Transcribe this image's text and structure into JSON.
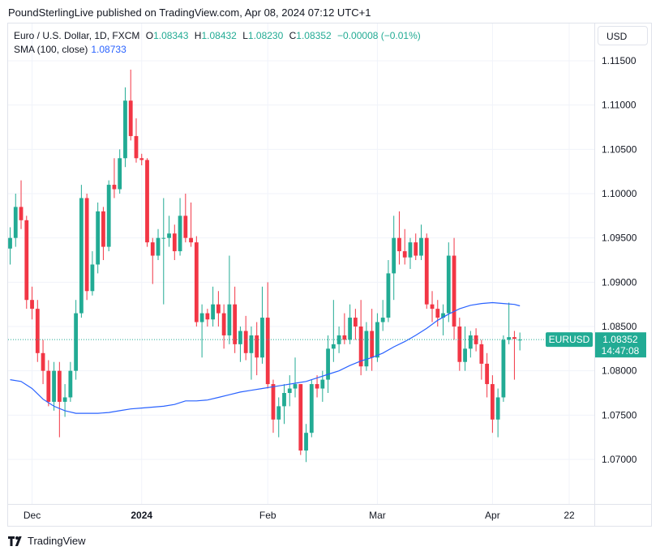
{
  "header": {
    "text": "PoundSterlingLive published on TradingView.com, Apr 08, 2024 07:12 UTC+1"
  },
  "legend": {
    "symbol": "Euro / U.S. Dollar, 1D, FXCM",
    "o_label": "O",
    "o_value": "1.08343",
    "h_label": "H",
    "h_value": "1.08432",
    "l_label": "L",
    "l_value": "1.08230",
    "c_label": "C",
    "c_value": "1.08352",
    "change": "−0.00008 (−0.01%)",
    "sma_label": "SMA (100, close)",
    "sma_value": "1.08733"
  },
  "currency_button": {
    "label": "USD"
  },
  "price_tag": {
    "symbol": "EURUSD",
    "price": "1.08352",
    "countdown": "14:47:08"
  },
  "footer": {
    "brand": "TradingView",
    "logo_icon": "tradingview-logo-icon"
  },
  "colors": {
    "up": "#22ab94",
    "down": "#f23645",
    "sma": "#2962ff",
    "grid": "#f0f3fa"
  },
  "chart_data": {
    "type": "candlestick",
    "y_ticks": [
      "1.11500",
      "1.11000",
      "1.10500",
      "1.10000",
      "1.09500",
      "1.09000",
      "1.08500",
      "1.08000",
      "1.07500",
      "1.07000"
    ],
    "ylim": [
      1.066,
      1.12
    ],
    "x_ticks": [
      {
        "label": "Dec",
        "index": 4
      },
      {
        "label": "2024",
        "index": 24
      },
      {
        "label": "Feb",
        "index": 47
      },
      {
        "label": "Mar",
        "index": 67
      },
      {
        "label": "Apr",
        "index": 88
      },
      {
        "label": "22",
        "index": 102
      }
    ],
    "grid": true,
    "last_price_line": 1.08352,
    "candles": [
      {
        "o": 1.0938,
        "h": 1.0962,
        "l": 1.092,
        "c": 1.095
      },
      {
        "o": 1.095,
        "h": 1.1,
        "l": 1.094,
        "c": 1.0985
      },
      {
        "o": 1.0985,
        "h": 1.1015,
        "l": 1.096,
        "c": 1.097
      },
      {
        "o": 1.097,
        "h": 1.0975,
        "l": 1.087,
        "c": 1.088
      },
      {
        "o": 1.088,
        "h": 1.0895,
        "l": 1.0858,
        "c": 1.087
      },
      {
        "o": 1.087,
        "h": 1.088,
        "l": 1.081,
        "c": 1.082
      },
      {
        "o": 1.082,
        "h": 1.0835,
        "l": 1.0785,
        "c": 1.08
      },
      {
        "o": 1.08,
        "h": 1.0812,
        "l": 1.076,
        "c": 1.0765
      },
      {
        "o": 1.0765,
        "h": 1.081,
        "l": 1.0755,
        "c": 1.08
      },
      {
        "o": 1.08,
        "h": 1.081,
        "l": 1.0725,
        "c": 1.0765
      },
      {
        "o": 1.0765,
        "h": 1.0785,
        "l": 1.0748,
        "c": 1.077
      },
      {
        "o": 1.077,
        "h": 1.081,
        "l": 1.0765,
        "c": 1.08
      },
      {
        "o": 1.08,
        "h": 1.088,
        "l": 1.079,
        "c": 1.0865
      },
      {
        "o": 1.0865,
        "h": 1.101,
        "l": 1.086,
        "c": 1.0995
      },
      {
        "o": 1.0995,
        "h": 1.1,
        "l": 1.088,
        "c": 1.089
      },
      {
        "o": 1.089,
        "h": 1.0935,
        "l": 1.0885,
        "c": 1.092
      },
      {
        "o": 1.092,
        "h": 1.099,
        "l": 1.091,
        "c": 1.098
      },
      {
        "o": 1.098,
        "h": 1.0985,
        "l": 1.0925,
        "c": 1.094
      },
      {
        "o": 1.094,
        "h": 1.1015,
        "l": 1.0935,
        "c": 1.101
      },
      {
        "o": 1.101,
        "h": 1.104,
        "l": 1.0995,
        "c": 1.1005
      },
      {
        "o": 1.1005,
        "h": 1.105,
        "l": 1.1,
        "c": 1.104
      },
      {
        "o": 1.104,
        "h": 1.112,
        "l": 1.103,
        "c": 1.1105
      },
      {
        "o": 1.1105,
        "h": 1.114,
        "l": 1.106,
        "c": 1.1065
      },
      {
        "o": 1.1065,
        "h": 1.1085,
        "l": 1.1035,
        "c": 1.104
      },
      {
        "o": 1.104,
        "h": 1.1045,
        "l": 1.1032,
        "c": 1.1038
      },
      {
        "o": 1.1038,
        "h": 1.104,
        "l": 1.094,
        "c": 1.0945
      },
      {
        "o": 1.0945,
        "h": 1.095,
        "l": 1.0898,
        "c": 1.093
      },
      {
        "o": 1.093,
        "h": 1.096,
        "l": 1.0925,
        "c": 1.095
      },
      {
        "o": 1.095,
        "h": 1.0995,
        "l": 1.0875,
        "c": 1.095
      },
      {
        "o": 1.095,
        "h": 1.0975,
        "l": 1.094,
        "c": 1.0955
      },
      {
        "o": 1.0955,
        "h": 1.0965,
        "l": 1.0925,
        "c": 1.0935
      },
      {
        "o": 1.0935,
        "h": 1.0995,
        "l": 1.093,
        "c": 1.0975
      },
      {
        "o": 1.0975,
        "h": 1.1,
        "l": 1.0945,
        "c": 1.095
      },
      {
        "o": 1.095,
        "h": 1.099,
        "l": 1.094,
        "c": 1.0945
      },
      {
        "o": 1.0945,
        "h": 1.0952,
        "l": 1.085,
        "c": 1.0855
      },
      {
        "o": 1.0855,
        "h": 1.0875,
        "l": 1.0815,
        "c": 1.0865
      },
      {
        "o": 1.0865,
        "h": 1.087,
        "l": 1.085,
        "c": 1.0858
      },
      {
        "o": 1.0858,
        "h": 1.0895,
        "l": 1.085,
        "c": 1.0875
      },
      {
        "o": 1.0875,
        "h": 1.089,
        "l": 1.085,
        "c": 1.0865
      },
      {
        "o": 1.0865,
        "h": 1.0875,
        "l": 1.0825,
        "c": 1.084
      },
      {
        "o": 1.084,
        "h": 1.093,
        "l": 1.083,
        "c": 1.0875
      },
      {
        "o": 1.0875,
        "h": 1.0895,
        "l": 1.082,
        "c": 1.083
      },
      {
        "o": 1.083,
        "h": 1.085,
        "l": 1.081,
        "c": 1.0845
      },
      {
        "o": 1.0845,
        "h": 1.0862,
        "l": 1.0812,
        "c": 1.082
      },
      {
        "o": 1.082,
        "h": 1.085,
        "l": 1.079,
        "c": 1.084
      },
      {
        "o": 1.084,
        "h": 1.0855,
        "l": 1.0795,
        "c": 1.0815
      },
      {
        "o": 1.0815,
        "h": 1.0895,
        "l": 1.0808,
        "c": 1.086
      },
      {
        "o": 1.086,
        "h": 1.09,
        "l": 1.078,
        "c": 1.0785
      },
      {
        "o": 1.0785,
        "h": 1.079,
        "l": 1.073,
        "c": 1.0745
      },
      {
        "o": 1.0745,
        "h": 1.077,
        "l": 1.0725,
        "c": 1.076
      },
      {
        "o": 1.076,
        "h": 1.0785,
        "l": 1.074,
        "c": 1.0775
      },
      {
        "o": 1.0775,
        "h": 1.0795,
        "l": 1.076,
        "c": 1.078
      },
      {
        "o": 1.078,
        "h": 1.0815,
        "l": 1.077,
        "c": 1.0785
      },
      {
        "o": 1.0785,
        "h": 1.0785,
        "l": 1.0705,
        "c": 1.071
      },
      {
        "o": 1.071,
        "h": 1.074,
        "l": 1.0697,
        "c": 1.073
      },
      {
        "o": 1.073,
        "h": 1.079,
        "l": 1.0725,
        "c": 1.0785
      },
      {
        "o": 1.0785,
        "h": 1.0795,
        "l": 1.077,
        "c": 1.078
      },
      {
        "o": 1.078,
        "h": 1.08,
        "l": 1.0765,
        "c": 1.079
      },
      {
        "o": 1.079,
        "h": 1.084,
        "l": 1.0775,
        "c": 1.0825
      },
      {
        "o": 1.0825,
        "h": 1.088,
        "l": 1.081,
        "c": 1.083
      },
      {
        "o": 1.083,
        "h": 1.085,
        "l": 1.082,
        "c": 1.084
      },
      {
        "o": 1.084,
        "h": 1.0865,
        "l": 1.083,
        "c": 1.0835
      },
      {
        "o": 1.0835,
        "h": 1.0875,
        "l": 1.083,
        "c": 1.086
      },
      {
        "o": 1.086,
        "h": 1.087,
        "l": 1.0835,
        "c": 1.085
      },
      {
        "o": 1.085,
        "h": 1.088,
        "l": 1.0795,
        "c": 1.0805
      },
      {
        "o": 1.0805,
        "h": 1.0855,
        "l": 1.08,
        "c": 1.0845
      },
      {
        "o": 1.0845,
        "h": 1.087,
        "l": 1.08,
        "c": 1.0815
      },
      {
        "o": 1.0815,
        "h": 1.0865,
        "l": 1.081,
        "c": 1.0855
      },
      {
        "o": 1.0855,
        "h": 1.088,
        "l": 1.0845,
        "c": 1.086
      },
      {
        "o": 1.086,
        "h": 1.0925,
        "l": 1.0855,
        "c": 1.091
      },
      {
        "o": 1.091,
        "h": 1.0975,
        "l": 1.088,
        "c": 1.095
      },
      {
        "o": 1.095,
        "h": 1.098,
        "l": 1.092,
        "c": 1.0935
      },
      {
        "o": 1.0935,
        "h": 1.096,
        "l": 1.092,
        "c": 1.0928
      },
      {
        "o": 1.0928,
        "h": 1.095,
        "l": 1.0915,
        "c": 1.0945
      },
      {
        "o": 1.0945,
        "h": 1.0955,
        "l": 1.0925,
        "c": 1.093
      },
      {
        "o": 1.093,
        "h": 1.0965,
        "l": 1.0925,
        "c": 1.095
      },
      {
        "o": 1.095,
        "h": 1.0955,
        "l": 1.087,
        "c": 1.0875
      },
      {
        "o": 1.0875,
        "h": 1.089,
        "l": 1.0855,
        "c": 1.087
      },
      {
        "o": 1.087,
        "h": 1.088,
        "l": 1.085,
        "c": 1.086
      },
      {
        "o": 1.086,
        "h": 1.0875,
        "l": 1.084,
        "c": 1.0865
      },
      {
        "o": 1.0865,
        "h": 1.0945,
        "l": 1.0855,
        "c": 1.093
      },
      {
        "o": 1.093,
        "h": 1.095,
        "l": 1.0835,
        "c": 1.085
      },
      {
        "o": 1.085,
        "h": 1.086,
        "l": 1.08,
        "c": 1.081
      },
      {
        "o": 1.081,
        "h": 1.085,
        "l": 1.08,
        "c": 1.0825
      },
      {
        "o": 1.0825,
        "h": 1.0845,
        "l": 1.0815,
        "c": 1.084
      },
      {
        "o": 1.084,
        "h": 1.0848,
        "l": 1.0822,
        "c": 1.083
      },
      {
        "o": 1.083,
        "h": 1.0835,
        "l": 1.079,
        "c": 1.0808
      },
      {
        "o": 1.0808,
        "h": 1.082,
        "l": 1.077,
        "c": 1.0785
      },
      {
        "o": 1.0785,
        "h": 1.0795,
        "l": 1.073,
        "c": 1.0745
      },
      {
        "o": 1.0745,
        "h": 1.078,
        "l": 1.0725,
        "c": 1.077
      },
      {
        "o": 1.077,
        "h": 1.084,
        "l": 1.0765,
        "c": 1.0835
      },
      {
        "o": 1.0835,
        "h": 1.0877,
        "l": 1.083,
        "c": 1.0838
      },
      {
        "o": 1.0838,
        "h": 1.0845,
        "l": 1.079,
        "c": 1.0836
      },
      {
        "o": 1.08343,
        "h": 1.08432,
        "l": 1.0823,
        "c": 1.08352
      }
    ],
    "sma": [
      [
        0,
        1.079
      ],
      [
        2,
        1.0788
      ],
      [
        4,
        1.078
      ],
      [
        6,
        1.0768
      ],
      [
        8,
        1.076
      ],
      [
        10,
        1.0755
      ],
      [
        12,
        1.0752
      ],
      [
        14,
        1.0752
      ],
      [
        16,
        1.0752
      ],
      [
        18,
        1.0753
      ],
      [
        20,
        1.0755
      ],
      [
        22,
        1.0757
      ],
      [
        24,
        1.0758
      ],
      [
        26,
        1.0759
      ],
      [
        28,
        1.076
      ],
      [
        30,
        1.0762
      ],
      [
        32,
        1.0766
      ],
      [
        34,
        1.0766
      ],
      [
        36,
        1.0767
      ],
      [
        38,
        1.077
      ],
      [
        40,
        1.0773
      ],
      [
        42,
        1.0776
      ],
      [
        44,
        1.0778
      ],
      [
        46,
        1.078
      ],
      [
        48,
        1.0782
      ],
      [
        50,
        1.0784
      ],
      [
        52,
        1.0786
      ],
      [
        54,
        1.0788
      ],
      [
        56,
        1.0792
      ],
      [
        58,
        1.0796
      ],
      [
        60,
        1.08
      ],
      [
        62,
        1.0806
      ],
      [
        64,
        1.0811
      ],
      [
        66,
        1.0815
      ],
      [
        68,
        1.082
      ],
      [
        70,
        1.0827
      ],
      [
        72,
        1.0833
      ],
      [
        74,
        1.084
      ],
      [
        76,
        1.0848
      ],
      [
        78,
        1.0857
      ],
      [
        80,
        1.0864
      ],
      [
        82,
        1.087
      ],
      [
        84,
        1.0874
      ],
      [
        86,
        1.0876
      ],
      [
        88,
        1.0877
      ],
      [
        90,
        1.0876
      ],
      [
        92,
        1.0875
      ],
      [
        93,
        1.08733
      ]
    ]
  }
}
